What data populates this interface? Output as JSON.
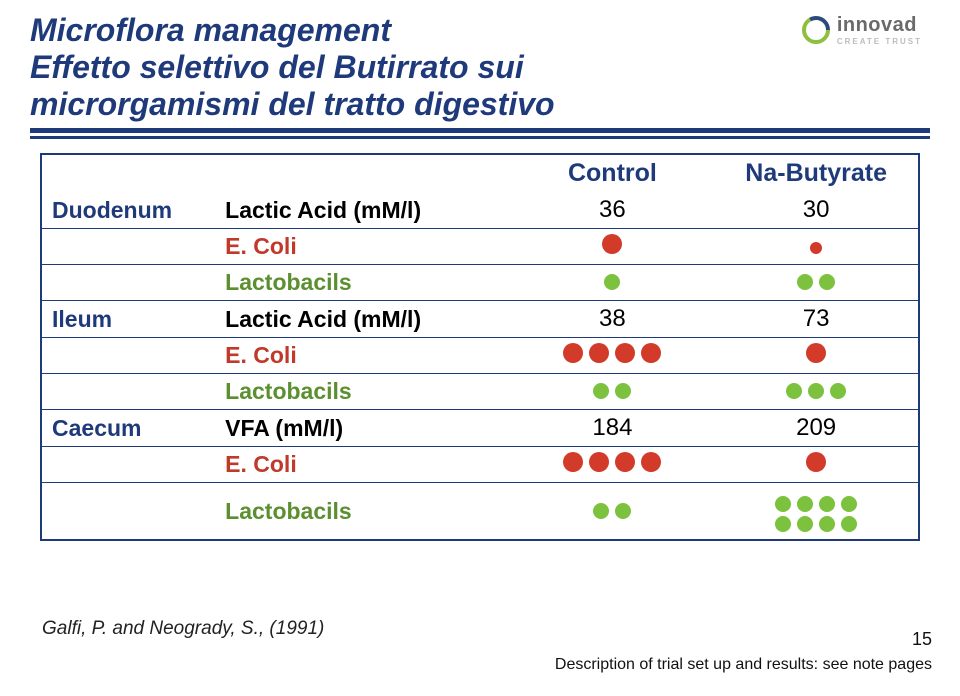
{
  "title": {
    "line1": "Microflora management",
    "line2": "Effetto selettivo del Butirrato sui",
    "line3": "microrgamismi del tratto digestivo",
    "color": "#1f3a7a",
    "font_size": 32,
    "font_style": "italic-bold"
  },
  "logo": {
    "brand": "innovad",
    "tagline": "CREATE TRUST",
    "brand_color": "#6a6a6a",
    "tagline_color": "#bdbdbd",
    "mark_green": "#8fbf3f",
    "mark_dark": "#2e4a7a"
  },
  "rules": {
    "color": "#1f3a7a",
    "thick": 5,
    "thin": 3
  },
  "table": {
    "border_color": "#1f3a7a",
    "header": {
      "col3": "Control",
      "col4": "Na-Butyrate",
      "color": "#1f3a7a"
    },
    "label_color": "#1f3a7a",
    "ecoli_color": "#c0392b",
    "lacto_color": "#5b8f2f",
    "dot_red": "#d23a2a",
    "dot_green": "#7cc23f",
    "sections": [
      {
        "region": "Duodenum",
        "rows": [
          {
            "measure": "Lactic Acid (mM/l)",
            "kind": "num",
            "c": "36",
            "n": "30"
          },
          {
            "measure": "E. Coli",
            "kind": "ecoli",
            "c_dots": [
              {
                "color": "red",
                "size": "lg"
              }
            ],
            "n_dots": [
              {
                "color": "red",
                "size": "sm"
              }
            ]
          },
          {
            "measure": "Lactobacils",
            "kind": "lacto",
            "c_dots": [
              {
                "color": "green",
                "size": "md"
              }
            ],
            "n_dots": [
              {
                "color": "green",
                "size": "md"
              },
              {
                "color": "green",
                "size": "md"
              }
            ]
          }
        ]
      },
      {
        "region": "Ileum",
        "rows": [
          {
            "measure": "Lactic Acid (mM/l)",
            "kind": "num",
            "c": "38",
            "n": "73"
          },
          {
            "measure": "E. Coli",
            "kind": "ecoli",
            "c_dots": [
              {
                "color": "red",
                "size": "lg"
              },
              {
                "color": "red",
                "size": "lg"
              },
              {
                "color": "red",
                "size": "lg"
              },
              {
                "color": "red",
                "size": "lg"
              }
            ],
            "n_dots": [
              {
                "color": "red",
                "size": "lg"
              }
            ]
          },
          {
            "measure": "Lactobacils",
            "kind": "lacto",
            "c_dots": [
              {
                "color": "green",
                "size": "md"
              },
              {
                "color": "green",
                "size": "md"
              }
            ],
            "n_dots": [
              {
                "color": "green",
                "size": "md"
              },
              {
                "color": "green",
                "size": "md"
              },
              {
                "color": "green",
                "size": "md"
              }
            ]
          }
        ]
      },
      {
        "region": "Caecum",
        "rows": [
          {
            "measure": "VFA (mM/l)",
            "kind": "num",
            "c": "184",
            "n": "209"
          },
          {
            "measure": "E. Coli",
            "kind": "ecoli",
            "c_dots": [
              {
                "color": "red",
                "size": "lg"
              },
              {
                "color": "red",
                "size": "lg"
              },
              {
                "color": "red",
                "size": "lg"
              },
              {
                "color": "red",
                "size": "lg"
              }
            ],
            "n_dots": [
              {
                "color": "red",
                "size": "lg"
              }
            ]
          },
          {
            "measure": "Lactobacils",
            "kind": "lacto",
            "c_dots": [
              {
                "color": "green",
                "size": "md"
              },
              {
                "color": "green",
                "size": "md"
              }
            ],
            "n_grid": [
              [
                {
                  "color": "green",
                  "size": "md"
                },
                {
                  "color": "green",
                  "size": "md"
                },
                {
                  "color": "green",
                  "size": "md"
                },
                {
                  "color": "green",
                  "size": "md"
                }
              ],
              [
                {
                  "color": "green",
                  "size": "md"
                },
                {
                  "color": "green",
                  "size": "md"
                },
                {
                  "color": "green",
                  "size": "md"
                },
                {
                  "color": "green",
                  "size": "md"
                }
              ]
            ]
          }
        ]
      }
    ]
  },
  "citation": "Galfi, P. and Neogrady, S., (1991)",
  "page_number": "15",
  "footnote": "Description of trial set up and results: see note pages"
}
